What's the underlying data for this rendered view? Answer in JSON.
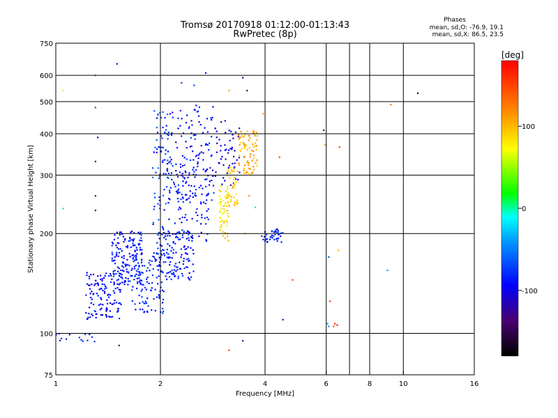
{
  "chart_data": {
    "type": "scatter",
    "title": "Tromsø 20170918 01:12:00-01:13:43",
    "subtitle": "RwPretec (8p)",
    "xlabel": "Frequency [MHz]",
    "ylabel": "Stationary phase Virtual Height [km]",
    "x_scale": "log",
    "y_scale": "log",
    "xlim": [
      1,
      16
    ],
    "ylim": [
      75,
      750
    ],
    "x_ticks": [
      1,
      2,
      4,
      6,
      8,
      10,
      16
    ],
    "x_tick_labels": [
      "1",
      "2",
      "4",
      "6",
      "8",
      "10",
      "16"
    ],
    "x_grid": [
      2,
      4,
      6,
      7,
      8,
      10
    ],
    "y_ticks": [
      75,
      100,
      200,
      300,
      400,
      500,
      600,
      750
    ],
    "y_tick_labels": [
      "75",
      "100",
      "200",
      "300",
      "400",
      "500",
      "600",
      "750"
    ],
    "grid": true,
    "stats": {
      "heading": "Phases",
      "line_o": "mean, sd,O: -76.9, 19.1",
      "line_x": "mean, sd,X:  86.5, 23.5"
    },
    "colorbar": {
      "label": "[deg]",
      "range": [
        -180,
        180
      ],
      "ticks": [
        100,
        0,
        -100
      ],
      "tick_labels": [
        "100",
        "0",
        "-100"
      ],
      "colormap": "rainbow"
    },
    "clusters": [
      {
        "x": [
          1.22,
          1.55
        ],
        "y": [
          110,
          155
        ],
        "phase": [
          -110,
          -75
        ],
        "n": 130
      },
      {
        "x": [
          1.45,
          1.78
        ],
        "y": [
          140,
          205
        ],
        "phase": [
          -105,
          -70
        ],
        "n": 150
      },
      {
        "x": [
          1.65,
          2.05
        ],
        "y": [
          115,
          175
        ],
        "phase": [
          -100,
          -65
        ],
        "n": 110
      },
      {
        "x": [
          1.95,
          2.5
        ],
        "y": [
          145,
          205
        ],
        "phase": [
          -100,
          -70
        ],
        "n": 140
      },
      {
        "x": [
          1.9,
          2.15
        ],
        "y": [
          200,
          470
        ],
        "phase": [
          -100,
          -55
        ],
        "n": 80
      },
      {
        "x": [
          2.1,
          2.85
        ],
        "y": [
          250,
          490
        ],
        "phase": [
          -115,
          -70
        ],
        "n": 140
      },
      {
        "x": [
          2.2,
          2.75
        ],
        "y": [
          190,
          330
        ],
        "phase": [
          -110,
          -70
        ],
        "n": 80
      },
      {
        "x": [
          2.85,
          3.4
        ],
        "y": [
          275,
          440
        ],
        "phase": [
          -125,
          -90
        ],
        "n": 55
      },
      {
        "x": [
          2.95,
          3.15
        ],
        "y": [
          190,
          280
        ],
        "phase": [
          60,
          100
        ],
        "n": 60
      },
      {
        "x": [
          3.1,
          3.35
        ],
        "y": [
          240,
          320
        ],
        "phase": [
          80,
          110
        ],
        "n": 40
      },
      {
        "x": [
          3.35,
          3.8
        ],
        "y": [
          300,
          410
        ],
        "phase": [
          85,
          125
        ],
        "n": 80
      },
      {
        "x": [
          3.9,
          4.5
        ],
        "y": [
          188,
          207
        ],
        "phase": [
          -95,
          -70
        ],
        "n": 40
      },
      {
        "x": [
          1.0,
          1.3
        ],
        "y": [
          94,
          100
        ],
        "phase": [
          -100,
          -70
        ],
        "n": 14
      }
    ],
    "points": [
      {
        "x": 1.05,
        "y": 540,
        "phase": 80
      },
      {
        "x": 1.3,
        "y": 600,
        "phase": -40
      },
      {
        "x": 1.3,
        "y": 480,
        "phase": -60
      },
      {
        "x": 1.32,
        "y": 390,
        "phase": -110
      },
      {
        "x": 1.3,
        "y": 330,
        "phase": -110
      },
      {
        "x": 1.5,
        "y": 650,
        "phase": -100
      },
      {
        "x": 1.3,
        "y": 260,
        "phase": -130
      },
      {
        "x": 1.3,
        "y": 235,
        "phase": -120
      },
      {
        "x": 1.05,
        "y": 238,
        "phase": 10
      },
      {
        "x": 1.52,
        "y": 92,
        "phase": -140
      },
      {
        "x": 2.7,
        "y": 610,
        "phase": -110
      },
      {
        "x": 2.3,
        "y": 570,
        "phase": -70
      },
      {
        "x": 2.5,
        "y": 560,
        "phase": -70
      },
      {
        "x": 3.15,
        "y": 540,
        "phase": 110
      },
      {
        "x": 3.45,
        "y": 590,
        "phase": -120
      },
      {
        "x": 3.55,
        "y": 540,
        "phase": -150
      },
      {
        "x": 3.95,
        "y": 460,
        "phase": 110
      },
      {
        "x": 4.4,
        "y": 340,
        "phase": 150
      },
      {
        "x": 3.75,
        "y": 240,
        "phase": -20
      },
      {
        "x": 3.6,
        "y": 260,
        "phase": 120
      },
      {
        "x": 3.5,
        "y": 200,
        "phase": 110
      },
      {
        "x": 3.15,
        "y": 89,
        "phase": 150
      },
      {
        "x": 3.45,
        "y": 95,
        "phase": -120
      },
      {
        "x": 4.5,
        "y": 110,
        "phase": -110
      },
      {
        "x": 4.8,
        "y": 145,
        "phase": 150
      },
      {
        "x": 5.9,
        "y": 410,
        "phase": -130
      },
      {
        "x": 5.95,
        "y": 370,
        "phase": 110
      },
      {
        "x": 6.55,
        "y": 365,
        "phase": 150
      },
      {
        "x": 6.1,
        "y": 170,
        "phase": -60
      },
      {
        "x": 6.5,
        "y": 178,
        "phase": 100
      },
      {
        "x": 6.15,
        "y": 125,
        "phase": 160
      },
      {
        "x": 6.05,
        "y": 107,
        "phase": -40
      },
      {
        "x": 6.1,
        "y": 105,
        "phase": -40
      },
      {
        "x": 6.3,
        "y": 105,
        "phase": 150
      },
      {
        "x": 6.35,
        "y": 107,
        "phase": 160
      },
      {
        "x": 6.45,
        "y": 106,
        "phase": 170
      },
      {
        "x": 9.2,
        "y": 490,
        "phase": 130
      },
      {
        "x": 11.0,
        "y": 530,
        "phase": -160
      },
      {
        "x": 9.0,
        "y": 155,
        "phase": -40
      }
    ]
  }
}
